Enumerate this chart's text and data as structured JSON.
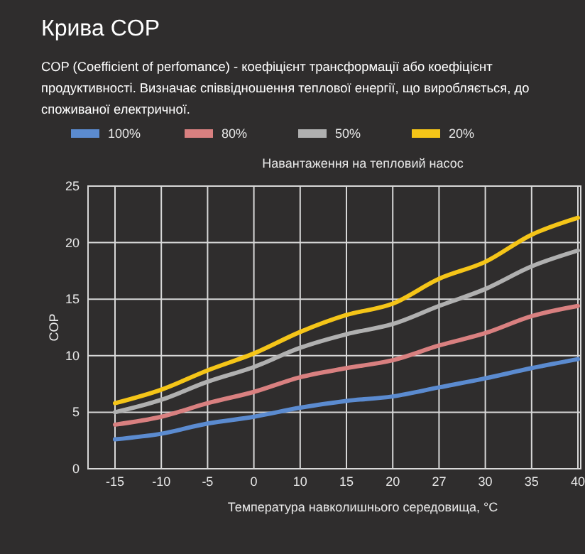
{
  "chart_data": {
    "type": "line",
    "title": "Крива COP",
    "subtitle": "COP (Coefficient of perfomance) - коефіцієнт трансформації або коефіцієнт продуктивності. Визначає співвідношення теплової енергії, що виробляється, до споживаної електричної.",
    "xlabel": "Температура навколишнього середовища, °C",
    "ylabel": "COP",
    "legend_title": "Навантаження на тепловий насос",
    "legend": "top",
    "grid": true,
    "marker": "none",
    "line_style": "solid",
    "categories": [
      "-15",
      "-10",
      "-5",
      "0",
      "10",
      "15",
      "20",
      "27",
      "30",
      "35",
      "40"
    ],
    "ylim": [
      0,
      25
    ],
    "yticks": [
      0,
      5,
      10,
      15,
      20,
      25
    ],
    "series": [
      {
        "name": "100%",
        "color": "#5b8bd0",
        "values": [
          2.6,
          3.1,
          4.0,
          4.6,
          5.4,
          6.0,
          6.4,
          7.2,
          8.0,
          8.9,
          9.7
        ]
      },
      {
        "name": "80%",
        "color": "#d98080",
        "values": [
          3.9,
          4.6,
          5.8,
          6.8,
          8.1,
          8.9,
          9.6,
          10.9,
          12.0,
          13.5,
          14.4
        ]
      },
      {
        "name": "50%",
        "color": "#b0b0b0",
        "values": [
          5.0,
          6.1,
          7.7,
          9.0,
          10.7,
          11.9,
          12.8,
          14.4,
          15.9,
          17.9,
          19.3
        ]
      },
      {
        "name": "20%",
        "color": "#f5c518",
        "values": [
          5.8,
          7.0,
          8.7,
          10.2,
          12.1,
          13.6,
          14.6,
          16.8,
          18.3,
          20.7,
          22.2
        ]
      }
    ]
  }
}
